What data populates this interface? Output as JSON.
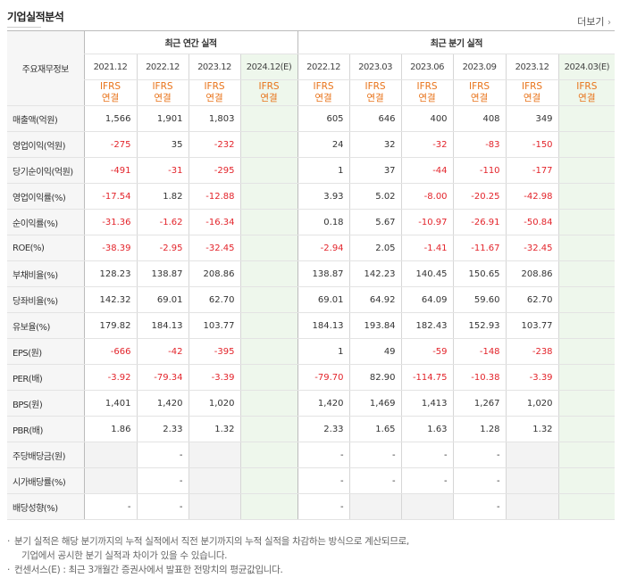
{
  "title": "기업실적분석",
  "more": "더보기",
  "corner_label": "주요재무정보",
  "groups": {
    "annual": "최근 연간 실적",
    "quarter": "최근 분기 실적"
  },
  "periods": [
    "2021.12",
    "2022.12",
    "2023.12",
    "2024.12(E)",
    "2022.12",
    "2023.03",
    "2023.06",
    "2023.09",
    "2023.12",
    "2024.03(E)"
  ],
  "ifrs": {
    "line1": "IFRS",
    "line2": "연결"
  },
  "rows": [
    {
      "label": "매출액(억원)",
      "values": [
        "1,566",
        "1,901",
        "1,803",
        "",
        "605",
        "646",
        "400",
        "408",
        "349",
        ""
      ]
    },
    {
      "label": "영업이익(억원)",
      "values": [
        "-275",
        "35",
        "-232",
        "",
        "24",
        "32",
        "-32",
        "-83",
        "-150",
        ""
      ]
    },
    {
      "label": "당기순이익(억원)",
      "values": [
        "-491",
        "-31",
        "-295",
        "",
        "1",
        "37",
        "-44",
        "-110",
        "-177",
        ""
      ]
    },
    {
      "label": "영업이익률(%)",
      "values": [
        "-17.54",
        "1.82",
        "-12.88",
        "",
        "3.93",
        "5.02",
        "-8.00",
        "-20.25",
        "-42.98",
        ""
      ]
    },
    {
      "label": "순이익률(%)",
      "values": [
        "-31.36",
        "-1.62",
        "-16.34",
        "",
        "0.18",
        "5.67",
        "-10.97",
        "-26.91",
        "-50.84",
        ""
      ]
    },
    {
      "label": "ROE(%)",
      "values": [
        "-38.39",
        "-2.95",
        "-32.45",
        "",
        "-2.94",
        "2.05",
        "-1.41",
        "-11.67",
        "-32.45",
        ""
      ]
    },
    {
      "label": "부채비율(%)",
      "values": [
        "128.23",
        "138.87",
        "208.86",
        "",
        "138.87",
        "142.23",
        "140.45",
        "150.65",
        "208.86",
        ""
      ]
    },
    {
      "label": "당좌비율(%)",
      "values": [
        "142.32",
        "69.01",
        "62.70",
        "",
        "69.01",
        "64.92",
        "64.09",
        "59.60",
        "62.70",
        ""
      ]
    },
    {
      "label": "유보율(%)",
      "values": [
        "179.82",
        "184.13",
        "103.77",
        "",
        "184.13",
        "193.84",
        "182.43",
        "152.93",
        "103.77",
        ""
      ]
    },
    {
      "label": "EPS(원)",
      "values": [
        "-666",
        "-42",
        "-395",
        "",
        "1",
        "49",
        "-59",
        "-148",
        "-238",
        ""
      ]
    },
    {
      "label": "PER(배)",
      "values": [
        "-3.92",
        "-79.34",
        "-3.39",
        "",
        "-79.70",
        "82.90",
        "-114.75",
        "-10.38",
        "-3.39",
        ""
      ]
    },
    {
      "label": "BPS(원)",
      "values": [
        "1,401",
        "1,420",
        "1,020",
        "",
        "1,420",
        "1,469",
        "1,413",
        "1,267",
        "1,020",
        ""
      ]
    },
    {
      "label": "PBR(배)",
      "values": [
        "1.86",
        "2.33",
        "1.32",
        "",
        "2.33",
        "1.65",
        "1.63",
        "1.28",
        "1.32",
        ""
      ]
    },
    {
      "label": "주당배당금(원)",
      "values": [
        "",
        "-",
        "",
        "",
        "-",
        "-",
        "-",
        "-",
        "",
        ""
      ]
    },
    {
      "label": "시가배당률(%)",
      "values": [
        "",
        "-",
        "",
        "",
        "-",
        "-",
        "-",
        "-",
        "",
        ""
      ]
    },
    {
      "label": "배당성향(%)",
      "values": [
        "-",
        "-",
        "",
        "",
        "-",
        "",
        "",
        "-",
        "",
        ""
      ]
    }
  ],
  "notes": {
    "line1": "분기 실적은 해당 분기까지의 누적 실적에서 직전 분기까지의 누적 실적을 차감하는 방식으로 계산되므로,",
    "line2": "기업에서 공시한 분기 실적과 차이가 있을 수 있습니다.",
    "line3": "컨센서스(E) : 최근 3개월간 증권사에서 발표한 전망치의 평균값입니다."
  }
}
